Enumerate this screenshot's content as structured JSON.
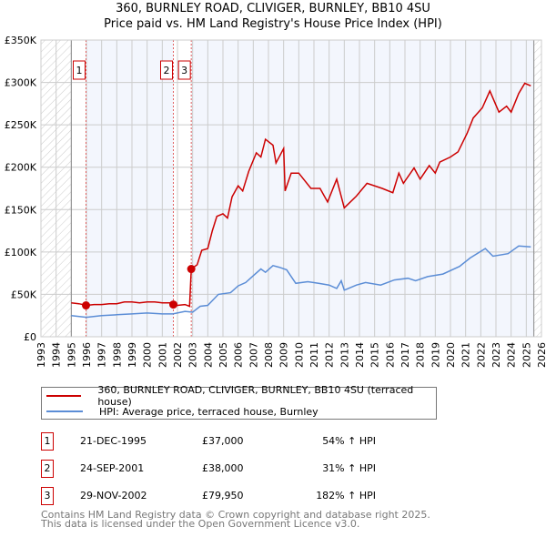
{
  "title": "360, BURNLEY ROAD, CLIVIGER, BURNLEY, BB10 4SU",
  "subtitle": "Price paid vs. HM Land Registry's House Price Index (HPI)",
  "chart_data": {
    "type": "line",
    "xlim": [
      1993,
      2026
    ],
    "ylim": [
      0,
      350000
    ],
    "x_ticks": [
      "1993",
      "1994",
      "1995",
      "1996",
      "1997",
      "1998",
      "1999",
      "2000",
      "2001",
      "2002",
      "2003",
      "2004",
      "2005",
      "2006",
      "2007",
      "2008",
      "2009",
      "2010",
      "2011",
      "2012",
      "2013",
      "2014",
      "2015",
      "2016",
      "2017",
      "2018",
      "2019",
      "2020",
      "2021",
      "2022",
      "2023",
      "2024",
      "2025",
      "2026"
    ],
    "y_ticks": [
      {
        "v": 0,
        "label": "£0"
      },
      {
        "v": 50000,
        "label": "£50K"
      },
      {
        "v": 100000,
        "label": "£100K"
      },
      {
        "v": 150000,
        "label": "£150K"
      },
      {
        "v": 200000,
        "label": "£200K"
      },
      {
        "v": 250000,
        "label": "£250K"
      },
      {
        "v": 300000,
        "label": "£300K"
      },
      {
        "v": 350000,
        "label": "£350K"
      }
    ],
    "series": [
      {
        "name": "360, BURNLEY ROAD, CLIVIGER, BURNLEY, BB10 4SU (terraced house)",
        "color": "#cc0000",
        "x": [
          1995,
          1995.5,
          1996,
          1996.5,
          1997,
          1997.5,
          1998,
          1998.5,
          1999,
          1999.5,
          2000,
          2000.5,
          2001,
          2001.5,
          2001.73,
          2002,
          2002.5,
          2002.8,
          2002.91,
          2003.3,
          2003.6,
          2004,
          2004.3,
          2004.6,
          2005,
          2005.3,
          2005.6,
          2006,
          2006.3,
          2006.7,
          2007.2,
          2007.5,
          2007.8,
          2008.3,
          2008.5,
          2009,
          2009.1,
          2009.5,
          2010,
          2010.8,
          2011.4,
          2011.9,
          2012.5,
          2013,
          2013.8,
          2014.5,
          2015.5,
          2016.2,
          2016.6,
          2016.9,
          2017.6,
          2018,
          2018.6,
          2019,
          2019.3,
          2020,
          2020.5,
          2021.1,
          2021.5,
          2022.1,
          2022.6,
          2023.2,
          2023.7,
          2024,
          2024.5,
          2024.9,
          2025.3
        ],
        "y": [
          40000,
          39000,
          37000,
          38000,
          38000,
          39000,
          39000,
          41000,
          41000,
          40000,
          41000,
          41000,
          40000,
          40000,
          38000,
          37000,
          38000,
          36000,
          79950,
          85000,
          102000,
          104000,
          125000,
          142000,
          145000,
          140000,
          165000,
          178000,
          172000,
          195000,
          217000,
          212000,
          233000,
          226000,
          205000,
          222000,
          172000,
          193000,
          193000,
          175000,
          175000,
          159000,
          186000,
          152000,
          166000,
          181000,
          175000,
          170000,
          193000,
          181000,
          199000,
          186000,
          202000,
          193000,
          206000,
          212000,
          218000,
          240000,
          258000,
          270000,
          290000,
          265000,
          272000,
          265000,
          287000,
          299000,
          296000
        ]
      },
      {
        "name": "HPI: Average price, terraced house, Burnley",
        "color": "#5b8dd6",
        "x": [
          1995,
          1996,
          1997,
          1998,
          1999,
          2000,
          2001,
          2001.7,
          2002.5,
          2003,
          2003.5,
          2004,
          2004.7,
          2005.5,
          2006,
          2006.5,
          2007,
          2007.5,
          2007.8,
          2008.3,
          2008.7,
          2009.2,
          2009.8,
          2010.6,
          2011.3,
          2012,
          2012.5,
          2012.8,
          2013,
          2013.8,
          2014.4,
          2015.4,
          2016.3,
          2017.2,
          2017.7,
          2018.5,
          2019.5,
          2020.6,
          2021.3,
          2022.3,
          2022.8,
          2023.8,
          2024.5,
          2025.3
        ],
        "y": [
          25000,
          23000,
          25000,
          26000,
          27000,
          28000,
          27000,
          27000,
          30000,
          29000,
          36000,
          37000,
          50000,
          52000,
          60000,
          64000,
          72000,
          80000,
          76000,
          84000,
          82000,
          79000,
          63000,
          65000,
          63000,
          61000,
          57000,
          66000,
          55000,
          61000,
          64000,
          61000,
          67000,
          69000,
          66000,
          71000,
          74000,
          83000,
          93000,
          104000,
          95000,
          98000,
          107000,
          106000
        ]
      }
    ],
    "sales": [
      {
        "n": "1",
        "x": 1995.97,
        "y": 37000
      },
      {
        "n": "2",
        "x": 2001.73,
        "y": 38000
      },
      {
        "n": "3",
        "x": 2002.91,
        "y": 79950
      }
    ]
  },
  "legend": {
    "property": "360, BURNLEY ROAD, CLIVIGER, BURNLEY, BB10 4SU (terraced house)",
    "hpi": "HPI: Average price, terraced house, Burnley"
  },
  "transactions": [
    {
      "n": "1",
      "date": "21-DEC-1995",
      "price": "£37,000",
      "hpi": "54% ↑ HPI"
    },
    {
      "n": "2",
      "date": "24-SEP-2001",
      "price": "£38,000",
      "hpi": "31% ↑ HPI"
    },
    {
      "n": "3",
      "date": "29-NOV-2002",
      "price": "£79,950",
      "hpi": "182% ↑ HPI"
    }
  ],
  "footer": {
    "line1": "Contains HM Land Registry data © Crown copyright and database right 2025.",
    "line2": "This data is licensed under the Open Government Licence v3.0."
  }
}
